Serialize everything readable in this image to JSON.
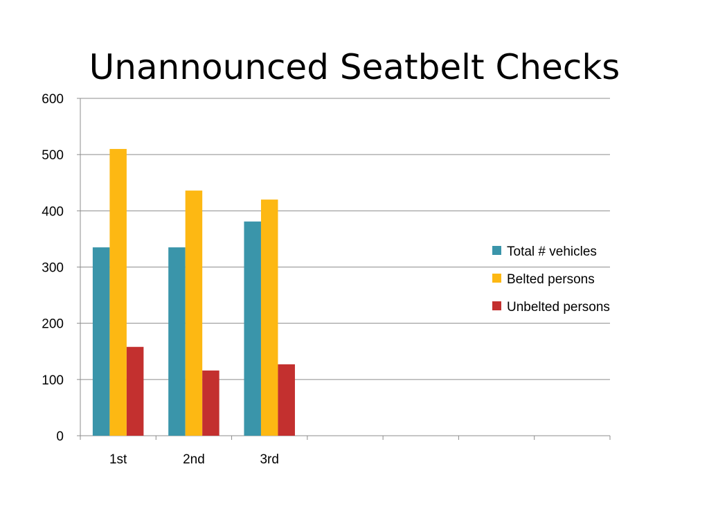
{
  "slide": {
    "title": "Unannounced Seatbelt Checks"
  },
  "chart_data": {
    "type": "bar",
    "title": "Unannounced Seatbelt Checks",
    "xlabel": "",
    "ylabel": "",
    "ylim": [
      0,
      600
    ],
    "yticks": [
      0,
      100,
      200,
      300,
      400,
      500,
      600
    ],
    "categories": [
      "1st",
      "2nd",
      "3rd",
      "",
      "",
      "",
      ""
    ],
    "series": [
      {
        "name": "Total # vehicles",
        "color": "#3A95AA",
        "values": [
          335,
          335,
          381,
          null,
          null,
          null,
          null
        ]
      },
      {
        "name": "Belted persons",
        "color": "#FDB813",
        "values": [
          510,
          436,
          420,
          null,
          null,
          null,
          null
        ]
      },
      {
        "name": "Unbelted persons",
        "color": "#C3302F",
        "values": [
          158,
          116,
          127,
          null,
          null,
          null,
          null
        ]
      }
    ],
    "grid": true,
    "legend": "right"
  }
}
